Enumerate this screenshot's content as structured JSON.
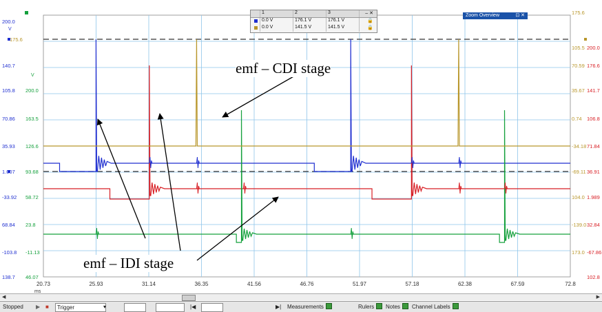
{
  "scope": {
    "time_unit": "ms",
    "x_ticks": [
      "20.73",
      "25.93",
      "31.14",
      "36.35",
      "41.56",
      "46.76",
      "51.97",
      "57.18",
      "62.38",
      "67.59",
      "72.8"
    ],
    "blue_scale": [
      "200.0",
      "140.7",
      "105.8",
      "70.86",
      "35.93",
      "1.007",
      "-33.92",
      "68.84",
      "-103.8",
      "138.7"
    ],
    "blue_unit": "V",
    "green_scale": [
      "200.0",
      "163.5",
      "126.6",
      "93.68",
      "58.72",
      "23.8",
      "-11.13",
      "46.07"
    ],
    "green_unit": "V",
    "right_outer": [
      "200.0",
      "176.6",
      "141.7",
      "106.8",
      "71.84",
      "36.91",
      "1.989",
      "32.84",
      "-67.86",
      "102.8"
    ],
    "right_inner": [
      "175.6",
      "105.5",
      "70.59",
      "35.67",
      "0.74",
      "-34.18",
      "-69.11",
      "104.0",
      "-139.0",
      "173.0"
    ],
    "marker_left": "175.6",
    "colors": {
      "blue": "#1f2fd0",
      "red": "#d81e24",
      "green": "#14a03c",
      "gold": "#b8962a"
    }
  },
  "measurements": {
    "headers": [
      "1",
      "2",
      "3"
    ],
    "rows": [
      {
        "color": "#1f2fd0",
        "cells": [
          "0.0 V",
          "176.1 V",
          "176.1 V"
        ]
      },
      {
        "color": "#b8962a",
        "cells": [
          "0.0 V",
          "141.5 V",
          "141.5 V"
        ]
      }
    ]
  },
  "zoom_overview": {
    "title": "Zoom Overview",
    "controls": "⊡ ✕"
  },
  "annotations": {
    "cdi": "emf – CDI stage",
    "idi": "emf – IDI stage"
  },
  "toolbar": {
    "stopped": "Stopped",
    "trigger": "Trigger",
    "measurements": "Measurements",
    "rulers": "Rulers",
    "notes": "Notes",
    "channel_labels": "Channel Labels"
  }
}
